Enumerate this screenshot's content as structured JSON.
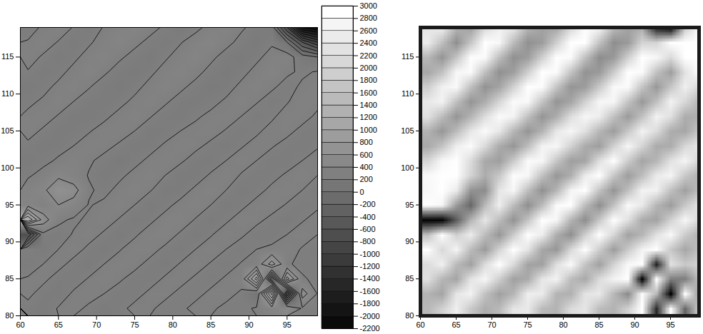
{
  "chart_data": [
    {
      "type": "contour",
      "xlim": [
        60,
        99
      ],
      "ylim": [
        80,
        119
      ],
      "xticks": [
        60,
        65,
        70,
        75,
        80,
        85,
        90,
        95
      ],
      "yticks": [
        80,
        85,
        90,
        95,
        100,
        105,
        110,
        115
      ],
      "cells": {
        "x": [
          61,
          63,
          65,
          67,
          69,
          71,
          73,
          75,
          77,
          79,
          81,
          83,
          85,
          87,
          89,
          91,
          93,
          95,
          97,
          99
        ],
        "y": [
          119,
          117,
          115,
          113,
          111,
          109,
          107,
          105,
          103,
          101,
          99,
          97,
          95,
          93,
          91,
          89,
          87,
          85,
          83,
          81
        ],
        "z": [
          [
            350,
            420,
            480,
            390,
            330,
            410,
            470,
            520,
            440,
            380,
            310,
            360,
            450,
            500,
            420,
            350,
            300,
            -600,
            -1800,
            -2000
          ],
          [
            410,
            470,
            390,
            320,
            380,
            460,
            510,
            430,
            370,
            320,
            390,
            470,
            520,
            440,
            360,
            310,
            380,
            200,
            -400,
            -800
          ],
          [
            460,
            380,
            320,
            370,
            450,
            500,
            420,
            360,
            310,
            380,
            460,
            510,
            430,
            350,
            300,
            370,
            450,
            480,
            300,
            200
          ],
          [
            390,
            330,
            360,
            440,
            490,
            420,
            350,
            300,
            370,
            450,
            500,
            440,
            360,
            310,
            360,
            440,
            490,
            420,
            380,
            410
          ],
          [
            330,
            360,
            430,
            480,
            410,
            340,
            310,
            360,
            440,
            490,
            430,
            360,
            310,
            350,
            430,
            480,
            420,
            360,
            420,
            460
          ],
          [
            370,
            420,
            470,
            400,
            340,
            320,
            360,
            430,
            480,
            420,
            350,
            320,
            360,
            420,
            470,
            410,
            350,
            390,
            460,
            430
          ],
          [
            430,
            460,
            390,
            330,
            330,
            370,
            440,
            470,
            410,
            340,
            330,
            380,
            430,
            460,
            400,
            340,
            380,
            450,
            440,
            380
          ],
          [
            450,
            380,
            320,
            340,
            390,
            450,
            460,
            400,
            330,
            340,
            400,
            440,
            450,
            390,
            340,
            380,
            440,
            430,
            370,
            340
          ],
          [
            370,
            320,
            350,
            400,
            460,
            440,
            380,
            320,
            350,
            420,
            450,
            430,
            370,
            330,
            390,
            440,
            410,
            360,
            340,
            390
          ],
          [
            320,
            360,
            420,
            470,
            420,
            360,
            310,
            360,
            430,
            460,
            420,
            350,
            320,
            400,
            450,
            400,
            350,
            340,
            400,
            440
          ],
          [
            380,
            450,
            560,
            480,
            390,
            320,
            370,
            440,
            470,
            400,
            330,
            330,
            420,
            460,
            390,
            340,
            360,
            420,
            450,
            400
          ],
          [
            480,
            560,
            750,
            680,
            420,
            360,
            440,
            480,
            410,
            330,
            340,
            430,
            470,
            400,
            330,
            360,
            430,
            460,
            400,
            350
          ],
          [
            520,
            450,
            600,
            520,
            390,
            430,
            470,
            400,
            320,
            360,
            440,
            480,
            400,
            320,
            370,
            440,
            450,
            390,
            340,
            380
          ],
          [
            1400,
            700,
            430,
            380,
            420,
            460,
            390,
            320,
            370,
            450,
            480,
            390,
            320,
            380,
            450,
            430,
            370,
            330,
            390,
            440
          ],
          [
            -600,
            360,
            350,
            410,
            450,
            380,
            320,
            380,
            460,
            470,
            380,
            320,
            390,
            460,
            420,
            350,
            340,
            400,
            450,
            400
          ],
          [
            380,
            330,
            400,
            450,
            370,
            320,
            390,
            460,
            450,
            370,
            320,
            400,
            460,
            400,
            340,
            400,
            430,
            450,
            390,
            350
          ],
          [
            350,
            400,
            440,
            360,
            330,
            400,
            460,
            440,
            360,
            330,
            410,
            450,
            390,
            340,
            410,
            460,
            900,
            420,
            360,
            380
          ],
          [
            410,
            430,
            350,
            340,
            410,
            450,
            420,
            350,
            340,
            420,
            440,
            380,
            350,
            420,
            450,
            1300,
            -400,
            1100,
            420,
            360
          ],
          [
            430,
            350,
            330,
            420,
            440,
            400,
            340,
            350,
            430,
            430,
            370,
            360,
            430,
            440,
            380,
            200,
            1500,
            -800,
            700,
            390
          ],
          [
            360,
            330,
            410,
            430,
            380,
            330,
            360,
            440,
            420,
            360,
            370,
            440,
            420,
            370,
            360,
            420,
            500,
            600,
            380,
            400
          ]
        ]
      },
      "colorbar": {
        "range": [
          -2200,
          3000
        ],
        "ticks": [
          -2200,
          -2000,
          -1800,
          -1600,
          -1400,
          -1200,
          -1000,
          -800,
          -600,
          -400,
          -200,
          0,
          200,
          400,
          600,
          800,
          1000,
          1200,
          1400,
          1600,
          1800,
          2000,
          2200,
          2400,
          2600,
          2800,
          3000
        ]
      }
    },
    {
      "type": "shaded_relief",
      "xlim": [
        60,
        99
      ],
      "ylim": [
        80,
        119
      ],
      "xticks": [
        60,
        65,
        70,
        75,
        80,
        85,
        90,
        95
      ],
      "yticks": [
        80,
        85,
        90,
        95,
        100,
        105,
        110,
        115
      ]
    }
  ]
}
